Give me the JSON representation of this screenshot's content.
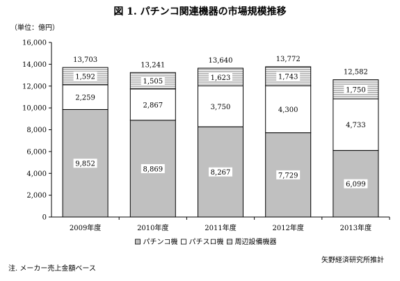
{
  "chart_data": {
    "type": "bar",
    "stacked": true,
    "title": "図 1. パチンコ関連機器の市場規模推移",
    "unit_label": "（単位：億円）",
    "categories": [
      "2009年度",
      "2010年度",
      "2011年度",
      "2012年度",
      "2013年度"
    ],
    "series": [
      {
        "name": "パチンコ機",
        "values": [
          9852,
          8869,
          8267,
          7729,
          6099
        ],
        "color": "#c0c0c0",
        "pattern": "solid-gray"
      },
      {
        "name": "パチスロ機",
        "values": [
          2259,
          2867,
          3750,
          4300,
          4733
        ],
        "color": "#ffffff",
        "pattern": "white"
      },
      {
        "name": "周辺設備機器",
        "values": [
          1592,
          1505,
          1623,
          1743,
          1750
        ],
        "color": "#e0e0e0",
        "pattern": "horizontal-hatch"
      }
    ],
    "totals": [
      13703,
      13241,
      13640,
      13772,
      12582
    ],
    "ylim": [
      0,
      16000
    ],
    "yticks": [
      0,
      2000,
      4000,
      6000,
      8000,
      10000,
      12000,
      14000,
      16000
    ],
    "ytick_labels": [
      "0",
      "2,000",
      "4,000",
      "6,000",
      "8,000",
      "10,000",
      "12,000",
      "14,000",
      "16,000"
    ],
    "grid": false,
    "legend": "bottom-center",
    "source": "矢野経済研究所推計",
    "note": "注. メーカー売上金額ベース"
  }
}
